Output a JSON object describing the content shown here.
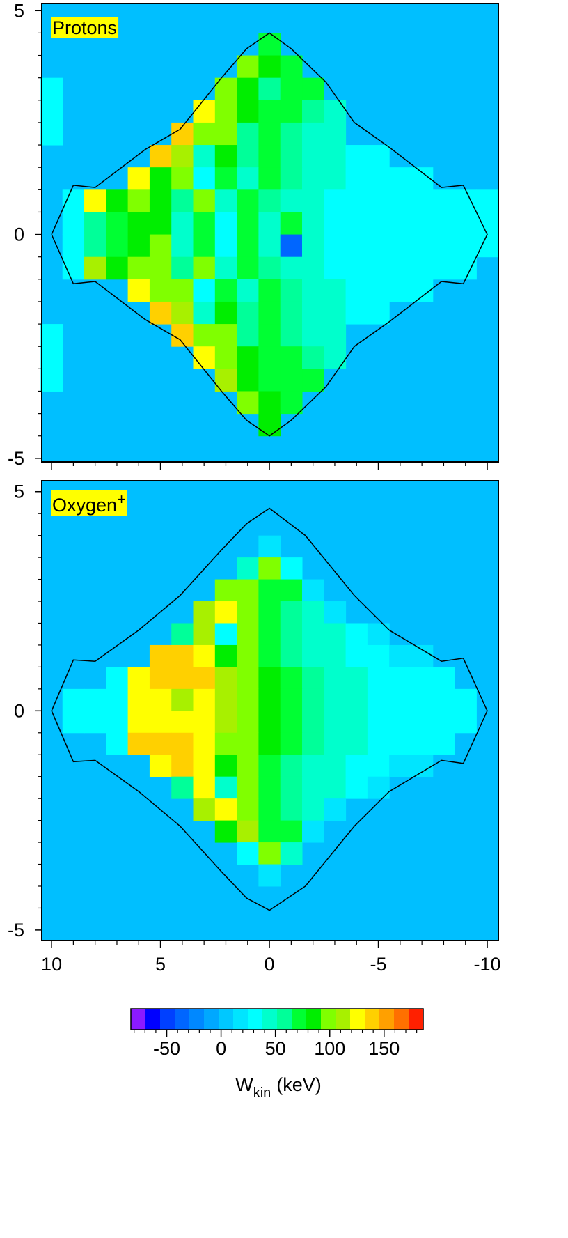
{
  "chart_data": [
    {
      "type": "heatmap",
      "label": "Protons",
      "label_color": "#ffff00",
      "background": "#00bfff",
      "xlim": [
        10.45,
        -10.51
      ],
      "ylim": [
        -5.08,
        5.16
      ],
      "xticks": [
        10,
        5,
        0,
        -5,
        -10
      ],
      "xtick_labels": false,
      "x_minor_ticks": [
        9,
        8,
        7,
        6,
        4,
        3,
        2,
        1,
        -1,
        -2,
        -3,
        -4,
        -6,
        -7,
        -8,
        -9
      ],
      "yticks": [
        -5,
        0,
        5
      ],
      "y_minor_ticks": [
        4.5,
        4,
        3.5,
        3,
        2.5,
        2,
        1.5,
        1,
        0.5,
        -0.5,
        -1,
        -1.5,
        -2,
        -2.5,
        -3,
        -3.5,
        -4,
        -4.5
      ],
      "x": [
        10,
        9,
        8,
        7,
        6,
        5,
        4,
        3,
        2,
        1,
        0,
        -1,
        -2,
        -3,
        -4,
        -5,
        -6,
        -7,
        -8,
        -9,
        -10
      ],
      "y": [
        4.75,
        4.25,
        3.75,
        3.25,
        2.75,
        2.25,
        1.75,
        1.25,
        0.75,
        0.25,
        -0.25,
        -0.75,
        -1.25,
        -1.75,
        -2.25,
        -2.75,
        -3.25,
        -3.75,
        -4.25,
        -4.75
      ],
      "z": [
        [
          null,
          null,
          null,
          null,
          null,
          null,
          null,
          null,
          null,
          null,
          null,
          null,
          null,
          null,
          null,
          null,
          null,
          null,
          null,
          null,
          null
        ],
        [
          null,
          null,
          null,
          null,
          null,
          null,
          null,
          null,
          null,
          null,
          75,
          null,
          null,
          null,
          null,
          null,
          null,
          null,
          null,
          null,
          null
        ],
        [
          null,
          null,
          null,
          null,
          null,
          null,
          null,
          null,
          null,
          100,
          90,
          70,
          null,
          null,
          null,
          null,
          null,
          null,
          null,
          null,
          null
        ],
        [
          28,
          null,
          null,
          null,
          null,
          null,
          null,
          null,
          105,
          80,
          60,
          75,
          75,
          null,
          null,
          null,
          null,
          null,
          null,
          null,
          null
        ],
        [
          30,
          null,
          null,
          null,
          null,
          null,
          null,
          125,
          100,
          90,
          75,
          75,
          55,
          45,
          null,
          null,
          null,
          null,
          null,
          null,
          null
        ],
        [
          28,
          null,
          null,
          null,
          null,
          null,
          140,
          100,
          95,
          60,
          75,
          55,
          45,
          40,
          null,
          null,
          null,
          null,
          null,
          null,
          null
        ],
        [
          null,
          null,
          null,
          null,
          null,
          140,
          110,
          40,
          90,
          60,
          75,
          55,
          45,
          40,
          35,
          30,
          null,
          null,
          null,
          null,
          null
        ],
        [
          null,
          null,
          null,
          null,
          125,
          90,
          100,
          30,
          75,
          50,
          75,
          55,
          45,
          40,
          35,
          30,
          30,
          28,
          null,
          null,
          null
        ],
        [
          null,
          28,
          120,
          80,
          100,
          90,
          60,
          100,
          40,
          75,
          55,
          40,
          40,
          35,
          30,
          28,
          28,
          27,
          27,
          27,
          28
        ],
        [
          null,
          28,
          55,
          70,
          80,
          90,
          40,
          70,
          30,
          75,
          45,
          70,
          45,
          35,
          30,
          30,
          28,
          28,
          27,
          27,
          28
        ],
        [
          null,
          28,
          60,
          75,
          85,
          95,
          45,
          65,
          35,
          75,
          50,
          -40,
          45,
          35,
          30,
          30,
          28,
          28,
          27,
          27,
          28
        ],
        [
          null,
          28,
          115,
          85,
          100,
          95,
          55,
          100,
          45,
          75,
          55,
          40,
          40,
          35,
          30,
          28,
          28,
          27,
          27,
          27,
          null
        ],
        [
          null,
          null,
          null,
          null,
          130,
          95,
          100,
          35,
          75,
          50,
          75,
          55,
          45,
          40,
          35,
          30,
          30,
          28,
          null,
          null,
          null
        ],
        [
          null,
          null,
          null,
          null,
          null,
          135,
          115,
          45,
          90,
          60,
          75,
          55,
          45,
          40,
          35,
          30,
          null,
          null,
          null,
          null,
          null
        ],
        [
          28,
          null,
          null,
          null,
          null,
          null,
          140,
          100,
          95,
          60,
          75,
          55,
          45,
          40,
          null,
          null,
          null,
          null,
          null,
          null,
          null
        ],
        [
          30,
          null,
          null,
          null,
          null,
          null,
          null,
          120,
          100,
          90,
          75,
          75,
          55,
          45,
          null,
          null,
          null,
          null,
          null,
          null,
          null
        ],
        [
          28,
          null,
          null,
          null,
          null,
          null,
          null,
          null,
          110,
          85,
          65,
          75,
          75,
          null,
          null,
          null,
          null,
          null,
          null,
          null,
          null
        ],
        [
          null,
          null,
          null,
          null,
          null,
          null,
          null,
          null,
          null,
          100,
          90,
          70,
          null,
          null,
          null,
          null,
          null,
          null,
          null,
          null,
          null
        ],
        [
          null,
          null,
          null,
          null,
          null,
          null,
          null,
          null,
          null,
          null,
          80,
          null,
          null,
          null,
          null,
          null,
          null,
          null,
          null,
          null,
          null
        ],
        [
          null,
          null,
          null,
          null,
          null,
          null,
          null,
          null,
          null,
          null,
          null,
          null,
          null,
          null,
          null,
          null,
          null,
          null,
          null,
          null,
          null
        ]
      ],
      "outline": {
        "color": "#000000",
        "x": [
          10,
          9,
          8,
          5.7,
          4.1,
          2.2,
          1.05,
          0,
          -1,
          -2.6,
          -3.9,
          -5.5,
          -7.9,
          -8.9,
          -10,
          -8.9,
          -7.9,
          -5.5,
          -3.9,
          -2.6,
          -1,
          0,
          1.05,
          2.2,
          4.1,
          5.7,
          8,
          9,
          10
        ],
        "y": [
          0,
          1.1,
          1.05,
          1.9,
          2.35,
          3.5,
          4.15,
          4.5,
          4.15,
          3.4,
          2.5,
          1.95,
          1.05,
          1.1,
          0,
          -1.1,
          -1.05,
          -1.95,
          -2.5,
          -3.4,
          -4.15,
          -4.5,
          -4.15,
          -3.5,
          -2.35,
          -1.9,
          -1.05,
          -1.1,
          0
        ]
      }
    },
    {
      "type": "heatmap",
      "label": "Oxygen",
      "label_sup": "+",
      "label_color": "#ffff00",
      "background": "#00bfff",
      "xlim": [
        10.45,
        -10.51
      ],
      "ylim": [
        -5.24,
        5.25
      ],
      "xticks": [
        10,
        5,
        0,
        -5,
        -10
      ],
      "xtick_labels": true,
      "x_minor_ticks": [
        9,
        8,
        7,
        6,
        4,
        3,
        2,
        1,
        -1,
        -2,
        -3,
        -4,
        -6,
        -7,
        -8,
        -9
      ],
      "yticks": [
        -5,
        0,
        5
      ],
      "y_minor_ticks": [
        4.5,
        4,
        3.5,
        3,
        2.5,
        2,
        1.5,
        1,
        0.5,
        -0.5,
        -1,
        -1.5,
        -2,
        -2.5,
        -3,
        -3.5,
        -4,
        -4.5
      ],
      "x": [
        10,
        9,
        8,
        7,
        6,
        5,
        4,
        3,
        2,
        1,
        0,
        -1,
        -2,
        -3,
        -4,
        -5,
        -6,
        -7,
        -8,
        -9,
        -10
      ],
      "y": [
        4.75,
        4.25,
        3.75,
        3.25,
        2.75,
        2.25,
        1.75,
        1.25,
        0.75,
        0.25,
        -0.25,
        -0.75,
        -1.25,
        -1.75,
        -2.25,
        -2.75,
        -3.25,
        -3.75,
        -4.25,
        -4.75
      ],
      "z": [
        [
          null,
          null,
          null,
          null,
          null,
          null,
          null,
          null,
          null,
          null,
          null,
          null,
          null,
          null,
          null,
          null,
          null,
          null,
          null,
          null,
          null
        ],
        [
          null,
          null,
          null,
          null,
          null,
          null,
          null,
          null,
          null,
          null,
          null,
          null,
          null,
          null,
          null,
          null,
          null,
          null,
          null,
          null,
          null
        ],
        [
          null,
          null,
          null,
          null,
          null,
          null,
          null,
          null,
          null,
          null,
          15,
          null,
          null,
          null,
          null,
          null,
          null,
          null,
          null,
          null,
          null
        ],
        [
          null,
          null,
          null,
          null,
          null,
          null,
          null,
          null,
          null,
          40,
          100,
          35,
          null,
          null,
          null,
          null,
          null,
          null,
          null,
          null,
          null
        ],
        [
          null,
          null,
          null,
          null,
          null,
          null,
          null,
          null,
          95,
          105,
          75,
          75,
          20,
          null,
          null,
          null,
          null,
          null,
          null,
          null,
          null
        ],
        [
          null,
          null,
          null,
          null,
          null,
          null,
          null,
          110,
          120,
          100,
          75,
          60,
          40,
          20,
          null,
          null,
          null,
          null,
          null,
          null,
          null
        ],
        [
          null,
          null,
          null,
          null,
          null,
          null,
          60,
          115,
          35,
          100,
          75,
          60,
          50,
          40,
          25,
          15,
          null,
          null,
          null,
          null,
          null
        ],
        [
          null,
          null,
          null,
          null,
          null,
          135,
          145,
          120,
          90,
          95,
          75,
          60,
          50,
          40,
          35,
          25,
          20,
          15,
          null,
          null,
          null
        ],
        [
          null,
          null,
          null,
          35,
          130,
          145,
          140,
          135,
          110,
          100,
          90,
          75,
          60,
          50,
          40,
          35,
          30,
          30,
          28,
          null,
          null
        ],
        [
          null,
          25,
          25,
          30,
          120,
          125,
          115,
          130,
          110,
          95,
          90,
          75,
          60,
          50,
          45,
          35,
          30,
          30,
          28,
          28,
          null
        ],
        [
          null,
          25,
          25,
          30,
          125,
          130,
          120,
          125,
          115,
          100,
          90,
          75,
          60,
          50,
          45,
          35,
          30,
          30,
          28,
          28,
          null
        ],
        [
          null,
          null,
          null,
          30,
          135,
          145,
          140,
          130,
          105,
          95,
          90,
          75,
          60,
          50,
          40,
          35,
          30,
          30,
          25,
          null,
          null
        ],
        [
          null,
          null,
          null,
          null,
          null,
          130,
          140,
          125,
          85,
          95,
          75,
          60,
          50,
          40,
          35,
          25,
          20,
          15,
          null,
          null,
          null
        ],
        [
          null,
          null,
          null,
          null,
          null,
          null,
          55,
          120,
          40,
          100,
          75,
          60,
          50,
          40,
          25,
          15,
          null,
          null,
          null,
          null,
          null
        ],
        [
          null,
          null,
          null,
          null,
          null,
          null,
          null,
          115,
          120,
          95,
          75,
          60,
          40,
          15,
          null,
          null,
          null,
          null,
          null,
          null,
          null
        ],
        [
          null,
          null,
          null,
          null,
          null,
          null,
          null,
          null,
          90,
          110,
          75,
          75,
          20,
          null,
          null,
          null,
          null,
          null,
          null,
          null,
          null
        ],
        [
          null,
          null,
          null,
          null,
          null,
          null,
          null,
          null,
          null,
          35,
          100,
          40,
          null,
          null,
          null,
          null,
          null,
          null,
          null,
          null,
          null
        ],
        [
          null,
          null,
          null,
          null,
          null,
          null,
          null,
          null,
          null,
          null,
          15,
          null,
          null,
          null,
          null,
          null,
          null,
          null,
          null,
          null,
          null
        ],
        [
          null,
          null,
          null,
          null,
          null,
          null,
          null,
          null,
          null,
          null,
          null,
          null,
          null,
          null,
          null,
          null,
          null,
          null,
          null,
          null,
          null
        ],
        [
          null,
          null,
          null,
          null,
          null,
          null,
          null,
          null,
          null,
          null,
          null,
          null,
          null,
          null,
          null,
          null,
          null,
          null,
          null,
          null,
          null
        ]
      ],
      "outline": {
        "color": "#000000",
        "x": [
          10,
          9,
          8,
          6,
          4.1,
          2.2,
          1.05,
          0,
          -1.65,
          -3.9,
          -5.5,
          -7.9,
          -8.9,
          -10,
          -8.9,
          -7.9,
          -5.5,
          -3.9,
          -1.65,
          0,
          1.05,
          2.2,
          4.1,
          6,
          8,
          9,
          10
        ],
        "y": [
          0,
          1.16,
          1.13,
          1.84,
          2.63,
          3.67,
          4.27,
          4.62,
          4,
          2.63,
          1.84,
          1.13,
          1.2,
          0,
          -1.2,
          -1.13,
          -1.84,
          -2.63,
          -4,
          -4.55,
          -4.27,
          -3.67,
          -2.63,
          -1.84,
          -1.13,
          -1.16,
          0
        ]
      }
    }
  ],
  "colorbar": {
    "clim": [
      -83,
      186
    ],
    "ticks": [
      -50,
      0,
      50,
      100,
      150
    ],
    "minor_ticks": [
      -80,
      -70,
      -60,
      -40,
      -30,
      -20,
      -10,
      10,
      20,
      30,
      40,
      60,
      70,
      80,
      90,
      110,
      120,
      130,
      140,
      160,
      170,
      180
    ],
    "colors": [
      "#8b1aff",
      "#0000ff",
      "#0040ff",
      "#0066ff",
      "#0088ff",
      "#00a8ff",
      "#00c8ff",
      "#00e5ff",
      "#00ffff",
      "#00ffcc",
      "#00ff99",
      "#00ff33",
      "#00ee00",
      "#80ff00",
      "#a8f000",
      "#ffff00",
      "#ffd000",
      "#ffa000",
      "#ff7000",
      "#ff2000"
    ],
    "label": "W",
    "label_sub": "kin",
    "label_unit": "(keV)"
  }
}
